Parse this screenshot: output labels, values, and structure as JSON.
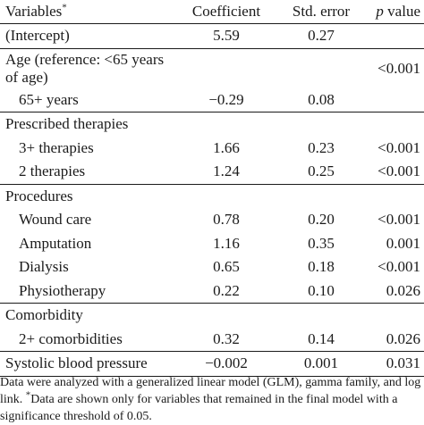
{
  "table": {
    "headers": {
      "variables": "Variables",
      "variables_mark": "*",
      "coefficient": "Coefficient",
      "std_error": "Std. error",
      "p_letter": "p",
      "p_suffix": " value"
    },
    "rows": [
      {
        "label": "(Intercept)",
        "coef": "5.59",
        "se": "0.27",
        "p": ""
      },
      {
        "label": "Age (reference: <65 years of age)",
        "coef": "",
        "se": "",
        "p": "<0.001"
      },
      {
        "label": "65+ years",
        "coef": "−0.29",
        "se": "0.08",
        "p": ""
      },
      {
        "label": "Prescribed therapies",
        "coef": "",
        "se": "",
        "p": ""
      },
      {
        "label": "3+ therapies",
        "coef": "1.66",
        "se": "0.23",
        "p": "<0.001"
      },
      {
        "label": "2 therapies",
        "coef": "1.24",
        "se": "0.25",
        "p": "<0.001"
      },
      {
        "label": "Procedures",
        "coef": "",
        "se": "",
        "p": ""
      },
      {
        "label": "Wound care",
        "coef": "0.78",
        "se": "0.20",
        "p": "<0.001"
      },
      {
        "label": "Amputation",
        "coef": "1.16",
        "se": "0.35",
        "p": "0.001"
      },
      {
        "label": "Dialysis",
        "coef": "0.65",
        "se": "0.18",
        "p": "<0.001"
      },
      {
        "label": "Physiotherapy",
        "coef": "0.22",
        "se": "0.10",
        "p": "0.026"
      },
      {
        "label": "Comorbidity",
        "coef": "",
        "se": "",
        "p": ""
      },
      {
        "label": "2+ comorbidities",
        "coef": "0.32",
        "se": "0.14",
        "p": "0.026"
      },
      {
        "label": "Systolic blood pressure",
        "coef": "−0.002",
        "se": "0.001",
        "p": "0.031"
      }
    ]
  },
  "footnote": {
    "text1": "Data were analyzed with a generalized linear model (GLM), gamma family, and log link. ",
    "mark": "*",
    "text2": "Data are shown only for variables that remained in the final model with a significance threshold of 0.05."
  }
}
